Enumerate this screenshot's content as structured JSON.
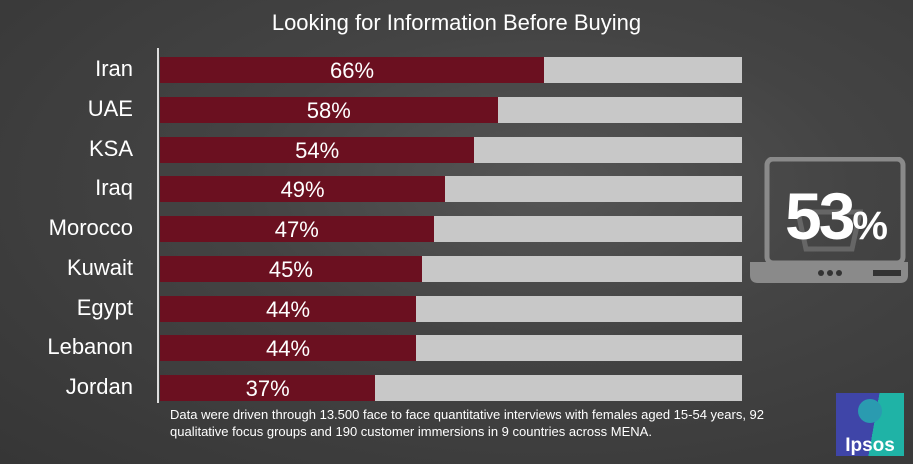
{
  "chart_data": {
    "type": "bar",
    "orientation": "horizontal",
    "title": "Looking for Information Before Buying",
    "categories": [
      "Iran",
      "UAE",
      "KSA",
      "Iraq",
      "Morocco",
      "Kuwait",
      "Egypt",
      "Lebanon",
      "Jordan"
    ],
    "values": [
      66,
      58,
      54,
      49,
      47,
      45,
      44,
      44,
      37
    ],
    "value_labels": [
      "66%",
      "58%",
      "54%",
      "49%",
      "47%",
      "45%",
      "44%",
      "44%",
      "37%"
    ],
    "xlim": [
      0,
      100
    ],
    "colors": {
      "bar": "#6b1020",
      "track": "#c8c8c8"
    }
  },
  "highlight": {
    "value": "53",
    "unit": "%",
    "icon": "laptop-shopping-basket-icon"
  },
  "note": "Data were driven through 13.500 face to face quantitative interviews with females aged 15-54 years,  92 qualitative focus groups and 190 customer immersions in 9 countries across MENA.",
  "logo": {
    "text": "Ipsos"
  }
}
